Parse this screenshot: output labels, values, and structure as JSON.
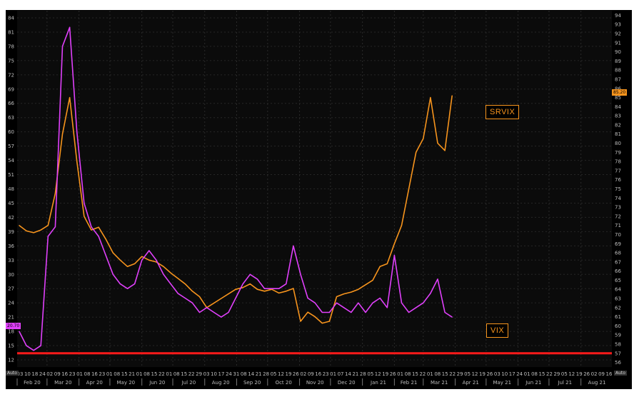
{
  "chart_data": {
    "type": "line",
    "x_dates": [
      "2020-02-03",
      "2020-02-10",
      "2020-02-17",
      "2020-02-24",
      "2020-03-02",
      "2020-03-09",
      "2020-03-16",
      "2020-03-23",
      "2020-03-30",
      "2020-04-06",
      "2020-04-13",
      "2020-04-20",
      "2020-04-27",
      "2020-05-04",
      "2020-05-11",
      "2020-05-18",
      "2020-05-25",
      "2020-06-01",
      "2020-06-08",
      "2020-06-15",
      "2020-06-22",
      "2020-06-29",
      "2020-07-06",
      "2020-07-13",
      "2020-07-20",
      "2020-07-27",
      "2020-08-03",
      "2020-08-10",
      "2020-08-17",
      "2020-08-24",
      "2020-08-31",
      "2020-09-07",
      "2020-09-14",
      "2020-09-21",
      "2020-09-28",
      "2020-10-05",
      "2020-10-12",
      "2020-10-19",
      "2020-10-26",
      "2020-11-02",
      "2020-11-09",
      "2020-11-16",
      "2020-11-23",
      "2020-11-30",
      "2020-12-07",
      "2020-12-14",
      "2020-12-21",
      "2020-12-28",
      "2021-01-04",
      "2021-01-11",
      "2021-01-18",
      "2021-01-25",
      "2021-02-01",
      "2021-02-08",
      "2021-02-15",
      "2021-02-22",
      "2021-03-01",
      "2021-03-08",
      "2021-03-15",
      "2021-03-22",
      "2021-03-29"
    ],
    "series": [
      {
        "name": "SRVIX",
        "axis": "right",
        "color": "#f7941d",
        "values": [
          71.0,
          70.4,
          70.2,
          70.5,
          71.0,
          74.5,
          81.0,
          85.0,
          78.0,
          72.0,
          70.5,
          70.8,
          69.5,
          68.0,
          67.2,
          66.5,
          66.8,
          67.6,
          67.2,
          67.0,
          66.5,
          65.8,
          65.2,
          64.6,
          63.8,
          63.2,
          62.0,
          62.5,
          63.0,
          63.5,
          64.0,
          64.2,
          64.6,
          64.0,
          63.8,
          64.0,
          63.6,
          63.8,
          64.1,
          60.5,
          61.5,
          61.0,
          60.3,
          60.5,
          63.2,
          63.5,
          63.7,
          64.0,
          64.5,
          65.0,
          66.5,
          66.8,
          69.0,
          71.0,
          75.0,
          79.0,
          80.5,
          85.0,
          80.0,
          79.2,
          85.2
        ]
      },
      {
        "name": "VIX",
        "axis": "left",
        "color": "#e040fb",
        "values": [
          18,
          15,
          14,
          15,
          38,
          40,
          78,
          82,
          60,
          45,
          40,
          38,
          34,
          30,
          28,
          27,
          28,
          33,
          35,
          33,
          30,
          28,
          26,
          25,
          24,
          22,
          23,
          22,
          21,
          22,
          25,
          28,
          30,
          29,
          27,
          27,
          27,
          28,
          36,
          30,
          25,
          24,
          22,
          22,
          24,
          23,
          22,
          24,
          22,
          24,
          25,
          23,
          34,
          24,
          22,
          23,
          24,
          26,
          29,
          22,
          21
        ]
      }
    ],
    "x_month_labels": [
      "Feb 20",
      "Mar 20",
      "Apr 20",
      "May 20",
      "Jun 20",
      "Jul 20",
      "Aug 20",
      "Sep 20",
      "Oct 20",
      "Nov 20",
      "Dec 20",
      "Jan 21",
      "Feb 21",
      "Mar 21",
      "Apr 21",
      "May 21",
      "Jun 21",
      "Jul 21",
      "Aug 21"
    ],
    "x_day_labels": [
      "03",
      "10",
      "18",
      "24",
      "02",
      "09",
      "16",
      "23",
      "01",
      "08",
      "16",
      "23",
      "01",
      "08",
      "15",
      "21",
      "01",
      "08",
      "15",
      "22",
      "01",
      "08",
      "15",
      "22",
      "29",
      "03",
      "10",
      "17",
      "24",
      "31",
      "08",
      "14",
      "21",
      "28",
      "05",
      "12",
      "19",
      "26",
      "02",
      "09",
      "16",
      "23",
      "01",
      "07",
      "14",
      "21",
      "28",
      "05",
      "12",
      "19",
      "26",
      "01",
      "08",
      "15",
      "22",
      "01",
      "08",
      "15",
      "22",
      "29",
      "05",
      "12",
      "19",
      "26",
      "03",
      "10",
      "17",
      "24",
      "01",
      "08",
      "15",
      "22",
      "29",
      "05",
      "12",
      "19",
      "26",
      "02",
      "09",
      "16"
    ],
    "y_left": {
      "ticks": [
        12,
        15,
        18,
        21,
        24,
        27,
        30,
        33,
        36,
        39,
        42,
        45,
        48,
        51,
        54,
        57,
        60,
        63,
        66,
        69,
        72,
        75,
        78,
        81,
        84
      ],
      "min": 10.5,
      "max": 85.5
    },
    "y_right": {
      "ticks": [
        56,
        57,
        58,
        59,
        60,
        61,
        62,
        63,
        64,
        65,
        66,
        67,
        68,
        69,
        70,
        71,
        72,
        73,
        74,
        75,
        76,
        77,
        78,
        79,
        80,
        81,
        82,
        83,
        84,
        85,
        86,
        87,
        88,
        89,
        90,
        91,
        92,
        93,
        94
      ],
      "min": 55.5,
      "max": 94.5
    },
    "reference_line": {
      "value": 57,
      "axis": "right",
      "color": "#ff1a1a"
    },
    "last_values": {
      "left": "20.70",
      "right": "85.20"
    },
    "corner_labels": {
      "left": "Auto",
      "right": "Auto"
    },
    "legend": [
      {
        "label": "SRVIX",
        "position": "upper-right"
      },
      {
        "label": "VIX",
        "position": "lower-right"
      }
    ],
    "grid": true,
    "title": "",
    "xlabel": "",
    "ylabel": ""
  }
}
